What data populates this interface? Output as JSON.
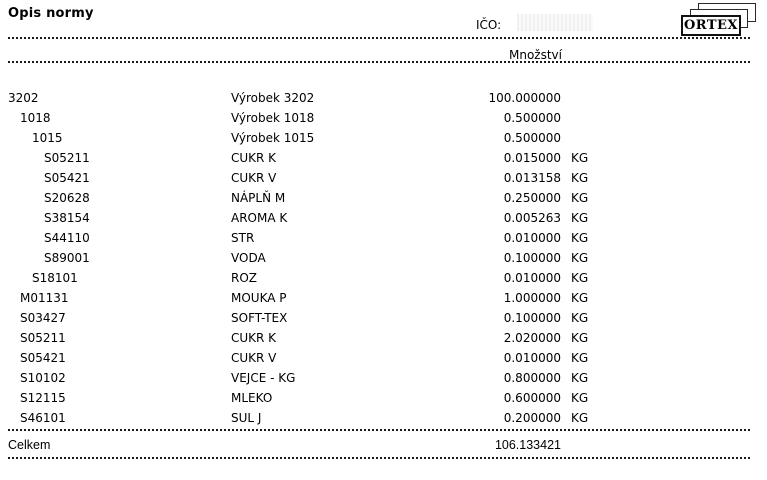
{
  "header": {
    "title": "Opis normy",
    "ico_label": "IČO:",
    "logo_text": "ORTEX",
    "qty_header": "Množství"
  },
  "table": {
    "rows": [
      {
        "code": "3202",
        "name": "Výrobek 3202",
        "qty": "100.000000",
        "unit": "",
        "indent": 0
      },
      {
        "code": "1018",
        "name": "Výrobek 1018",
        "qty": "0.500000",
        "unit": "",
        "indent": 1
      },
      {
        "code": "1015",
        "name": "Výrobek 1015",
        "qty": "0.500000",
        "unit": "",
        "indent": 2
      },
      {
        "code": "S05211",
        "name": "CUKR K",
        "qty": "0.015000",
        "unit": "KG",
        "indent": 3
      },
      {
        "code": "S05421",
        "name": "CUKR V",
        "qty": "0.013158",
        "unit": "KG",
        "indent": 3
      },
      {
        "code": "S20628",
        "name": "NÁPLŇ M",
        "qty": "0.250000",
        "unit": "KG",
        "indent": 3
      },
      {
        "code": "S38154",
        "name": "AROMA K",
        "qty": "0.005263",
        "unit": "KG",
        "indent": 3
      },
      {
        "code": "S44110",
        "name": "STR",
        "qty": "0.010000",
        "unit": "KG",
        "indent": 3
      },
      {
        "code": "S89001",
        "name": "VODA",
        "qty": "0.100000",
        "unit": "KG",
        "indent": 3
      },
      {
        "code": "S18101",
        "name": "ROZ",
        "qty": "0.010000",
        "unit": "KG",
        "indent": 2
      },
      {
        "code": "M01131",
        "name": "MOUKA P",
        "qty": "1.000000",
        "unit": "KG",
        "indent": 1
      },
      {
        "code": "S03427",
        "name": "SOFT-TEX",
        "qty": "0.100000",
        "unit": "KG",
        "indent": 1
      },
      {
        "code": "S05211",
        "name": "CUKR K",
        "qty": "2.020000",
        "unit": "KG",
        "indent": 1
      },
      {
        "code": "S05421",
        "name": "CUKR V",
        "qty": "0.010000",
        "unit": "KG",
        "indent": 1
      },
      {
        "code": "S10102",
        "name": "VEJCE - KG",
        "qty": "0.800000",
        "unit": "KG",
        "indent": 1
      },
      {
        "code": "S12115",
        "name": "MLEKO",
        "qty": "0.600000",
        "unit": "KG",
        "indent": 1
      },
      {
        "code": "S46101",
        "name": "SUL J",
        "qty": "0.200000",
        "unit": "KG",
        "indent": 1
      }
    ]
  },
  "footer": {
    "label": "Celkem",
    "total": "106.133421"
  }
}
